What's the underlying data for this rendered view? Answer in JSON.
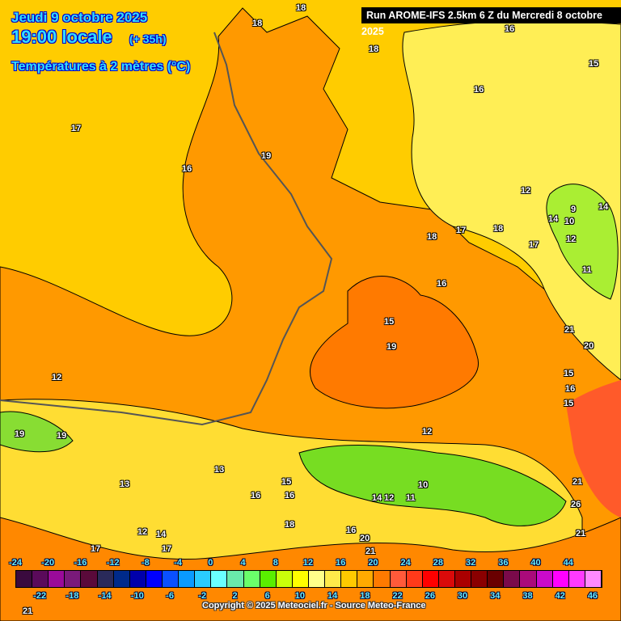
{
  "header": {
    "date": "Jeudi 9 octobre 2025",
    "time": "19:00 locale",
    "lead": "(+ 35h)",
    "variable": "Températures à 2 mètres (°C)",
    "run": "Run AROME-IFS 2.5km 6 Z du Mercredi 8 octobre 2025"
  },
  "contour_labels": [
    "18",
    "18",
    "18",
    "16",
    "15",
    "16",
    "17",
    "16",
    "19",
    "18",
    "17",
    "12",
    "9",
    "14",
    "10",
    "14",
    "12",
    "11",
    "18",
    "17",
    "16",
    "15",
    "19",
    "21",
    "20",
    "15",
    "16",
    "15",
    "12",
    "12",
    "19",
    "19",
    "13",
    "13",
    "16",
    "15",
    "16",
    "14",
    "17",
    "18",
    "10",
    "12",
    "11",
    "21",
    "26",
    "21",
    "16",
    "20",
    "21",
    "12",
    "14",
    "17",
    "21"
  ],
  "colorbar": {
    "top_ticks": [
      "-24",
      "-20",
      "-16",
      "-12",
      "-8",
      "-4",
      "0",
      "4",
      "8",
      "12",
      "16",
      "20",
      "24",
      "28",
      "32",
      "36",
      "40",
      "44"
    ],
    "bottom_ticks": [
      "-22",
      "-18",
      "-14",
      "-10",
      "-6",
      "-2",
      "2",
      "6",
      "10",
      "14",
      "18",
      "22",
      "26",
      "30",
      "34",
      "38",
      "42",
      "46"
    ],
    "colors": [
      "#3a0a3e",
      "#5a0a5a",
      "#9a0a9a",
      "#7a1a7a",
      "#5a0a3a",
      "#2a2a5a",
      "#002a8a",
      "#0000aa",
      "#0000ff",
      "#0a50ff",
      "#0a9aff",
      "#2accff",
      "#6affff",
      "#6aeaaa",
      "#6aff6a",
      "#5aee00",
      "#caff0a",
      "#ffff00",
      "#ffff8a",
      "#ffea4a",
      "#ffca00",
      "#ffaa00",
      "#ff7a00",
      "#ff5a3a",
      "#ff3a1a",
      "#ff0000",
      "#da0a0a",
      "#aa0000",
      "#8a0000",
      "#6a0000",
      "#7a0a4a",
      "#aa0a7a",
      "#ca0aca",
      "#ff00ff",
      "#ff3aff",
      "#ff8aff"
    ]
  },
  "copyright": "Copyright © 2025 Meteociel.fr - Source Meteo-France"
}
